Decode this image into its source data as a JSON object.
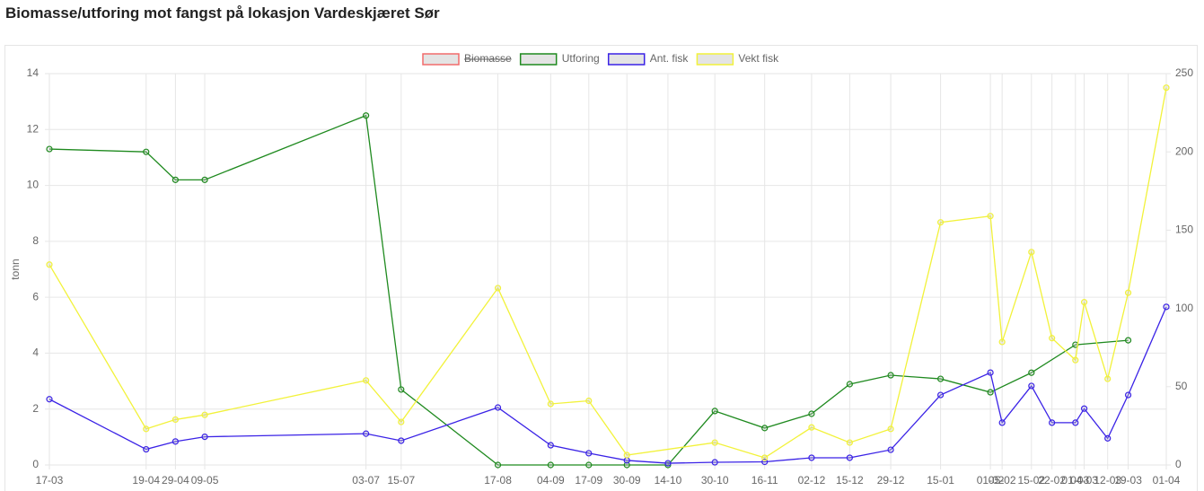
{
  "chart_data": {
    "type": "line",
    "title": "Biomasse/utforing mot fangst på lokasjon Vardeskjæret Sør",
    "x": [
      "17-03",
      "19-04",
      "29-04",
      "09-05",
      "03-07",
      "15-07",
      "17-08",
      "04-09",
      "17-09",
      "30-09",
      "14-10",
      "30-10",
      "16-11",
      "02-12",
      "15-12",
      "29-12",
      "15-01",
      "01-02",
      "05-02",
      "15-02",
      "22-02",
      "01-03",
      "04-03",
      "12-03",
      "19-03",
      "01-04"
    ],
    "ylabel": "tonn",
    "ylim": [
      0,
      14
    ],
    "yticks": [
      0,
      2,
      4,
      6,
      8,
      10,
      12,
      14
    ],
    "y2lim": [
      0,
      250
    ],
    "y2ticks": [
      0,
      50,
      100,
      150,
      200,
      250
    ],
    "grid": true,
    "span_gaps": true,
    "legend": "top",
    "series": [
      {
        "name": "Biomasse",
        "color": "#f26b6b",
        "hidden": true
      },
      {
        "name": "Utforing",
        "color": "#1f8a1f",
        "values": [
          11.3,
          11.2,
          10.2,
          10.2,
          12.5,
          2.7,
          0,
          0,
          0,
          0,
          0,
          1.93,
          1.32,
          1.83,
          2.89,
          3.21,
          3.08,
          2.6,
          null,
          3.3,
          null,
          4.3,
          null,
          null,
          4.46,
          null
        ]
      },
      {
        "name": "Ant. fisk",
        "color": "#3a22e6",
        "axis": "y2",
        "values": [
          42,
          10,
          15,
          18,
          20,
          15.5,
          36.7,
          12.6,
          7.5,
          2.9,
          1.1,
          1.7,
          2,
          4.6,
          4.6,
          9.7,
          44.7,
          59,
          27,
          50.5,
          27,
          27,
          36,
          17,
          44.7,
          101
        ]
      },
      {
        "name": "Vekt fisk",
        "color": "#f2f23a",
        "axis": "y2",
        "values": [
          128,
          23,
          29,
          32,
          54,
          27.5,
          113,
          39,
          41,
          6.3,
          null,
          14.3,
          4.6,
          24,
          14.3,
          23,
          155,
          159,
          78.6,
          136,
          81,
          67,
          104,
          55,
          110,
          241
        ]
      }
    ]
  }
}
